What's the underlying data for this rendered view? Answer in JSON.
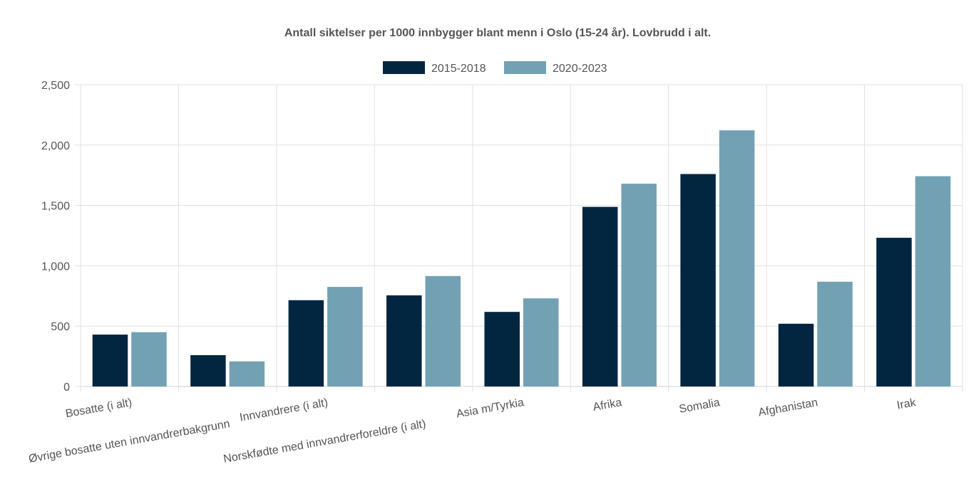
{
  "chart_data": {
    "type": "bar",
    "title": "Antall siktelser per 1000 innbygger blant menn i Oslo (15-24 år). Lovbrudd i alt.",
    "xlabel": "",
    "ylabel": "",
    "ylim": [
      0,
      2500
    ],
    "y_ticks": [
      0,
      500,
      1000,
      1500,
      2000,
      2500
    ],
    "y_tick_labels": [
      "0",
      "500",
      "1,000",
      "1,500",
      "2,000",
      "2,500"
    ],
    "grid": true,
    "legend_position": "top-center",
    "categories": [
      "Bosatte (i alt)",
      "Øvrige bosatte uten innvandrerbakgrunn",
      "Innvandrere (i alt)",
      "Norskfødte med innvandrerforeldre (i alt)",
      "Asia m/Tyrkia",
      "Afrika",
      "Somalia",
      "Afghanistan",
      "Irak"
    ],
    "series": [
      {
        "name": "2015-2018",
        "color": "#022640",
        "values": [
          430,
          260,
          715,
          755,
          618,
          1488,
          1760,
          520,
          1232
        ]
      },
      {
        "name": "2020-2023",
        "color": "#72a1b3",
        "values": [
          450,
          208,
          825,
          915,
          730,
          1680,
          2122,
          868,
          1742
        ]
      }
    ]
  }
}
